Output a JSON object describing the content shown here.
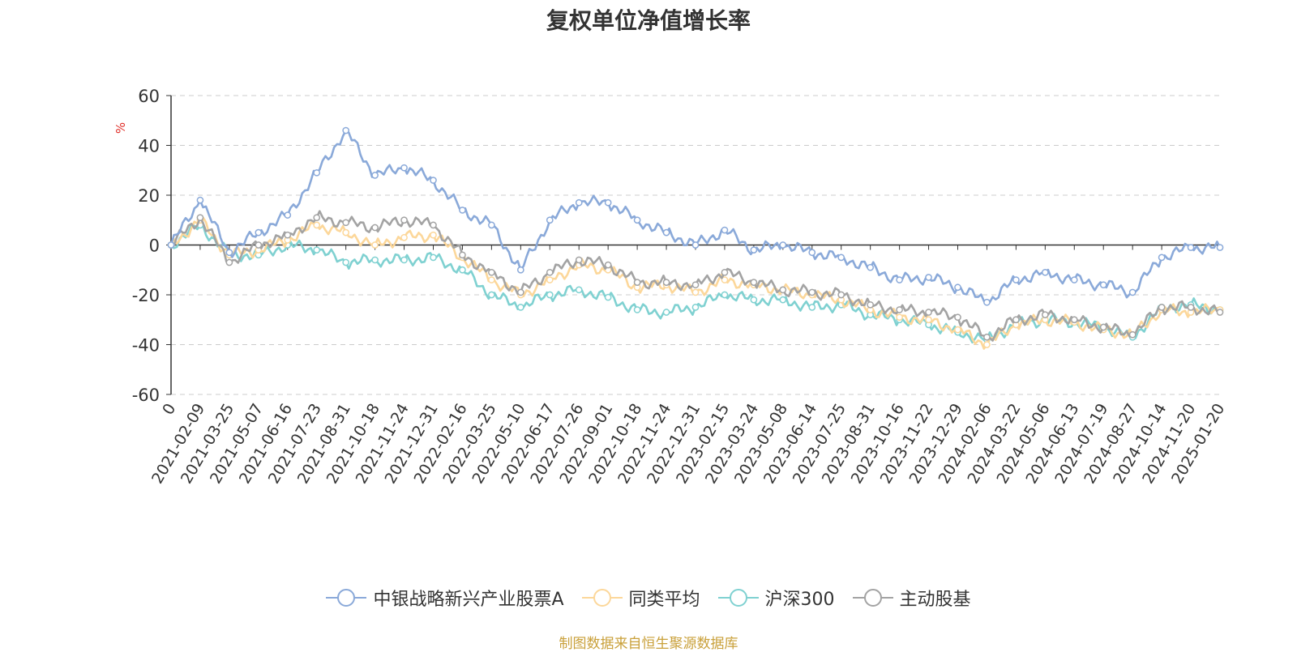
{
  "chart_data": {
    "type": "line",
    "title": "复权单位净值增长率",
    "ylabel": "%",
    "ylim": [
      -60,
      60
    ],
    "yticks": [
      60,
      40,
      20,
      0,
      -20,
      -40,
      -60
    ],
    "grid": true,
    "legend_position": "bottom",
    "x_tick_labels": [
      "0",
      "2021-02-09",
      "2021-03-25",
      "2021-05-07",
      "2021-06-16",
      "2021-07-23",
      "2021-08-31",
      "2021-10-18",
      "2021-11-24",
      "2021-12-31",
      "2022-02-16",
      "2022-03-25",
      "2022-05-10",
      "2022-06-17",
      "2022-07-26",
      "2022-09-01",
      "2022-10-18",
      "2022-11-24",
      "2022-12-31",
      "2023-02-15",
      "2023-03-24",
      "2023-05-08",
      "2023-06-14",
      "2023-07-25",
      "2023-08-31",
      "2023-10-16",
      "2023-11-22",
      "2023-12-29",
      "2024-02-06",
      "2024-03-22",
      "2024-05-06",
      "2024-06-13",
      "2024-07-19",
      "2024-08-27",
      "2024-10-14",
      "2024-11-20",
      "2025-01-20"
    ],
    "series": [
      {
        "name": "中银战略新兴产业股票A",
        "color": "#8aa9d9",
        "values": [
          0,
          18,
          -3,
          5,
          12,
          29,
          46,
          28,
          31,
          26,
          14,
          8,
          -10,
          10,
          17,
          17,
          10,
          5,
          0,
          6,
          -2,
          0,
          -3,
          -5,
          -9,
          -14,
          -13,
          -17,
          -23,
          -14,
          -11,
          -14,
          -16,
          -19,
          -5,
          -1,
          -1
        ]
      },
      {
        "name": "同类平均",
        "color": "#fcd79a",
        "values": [
          0,
          10,
          -4,
          -2,
          2,
          8,
          5,
          0,
          3,
          4,
          -5,
          -14,
          -20,
          -14,
          -8,
          -10,
          -17,
          -16,
          -19,
          -14,
          -16,
          -18,
          -20,
          -22,
          -26,
          -29,
          -30,
          -34,
          -40,
          -32,
          -30,
          -31,
          -34,
          -36,
          -26,
          -27,
          -26
        ]
      },
      {
        "name": "沪深300",
        "color": "#7fd1d1",
        "values": [
          0,
          8,
          -4,
          -4,
          0,
          -2,
          -7,
          -6,
          -6,
          -5,
          -10,
          -20,
          -25,
          -20,
          -18,
          -21,
          -26,
          -27,
          -25,
          -20,
          -22,
          -22,
          -25,
          -24,
          -28,
          -30,
          -32,
          -35,
          -38,
          -32,
          -30,
          -31,
          -33,
          -37,
          -25,
          -24,
          -26
        ]
      },
      {
        "name": "主动股基",
        "color": "#a3a3a3",
        "values": [
          0,
          11,
          -7,
          0,
          4,
          11,
          9,
          7,
          10,
          8,
          -4,
          -11,
          -19,
          -11,
          -6,
          -8,
          -15,
          -15,
          -16,
          -11,
          -15,
          -18,
          -19,
          -20,
          -24,
          -26,
          -27,
          -29,
          -37,
          -30,
          -28,
          -30,
          -33,
          -36,
          -25,
          -25,
          -27
        ]
      }
    ]
  },
  "source": "制图数据来自恒生聚源数据库"
}
